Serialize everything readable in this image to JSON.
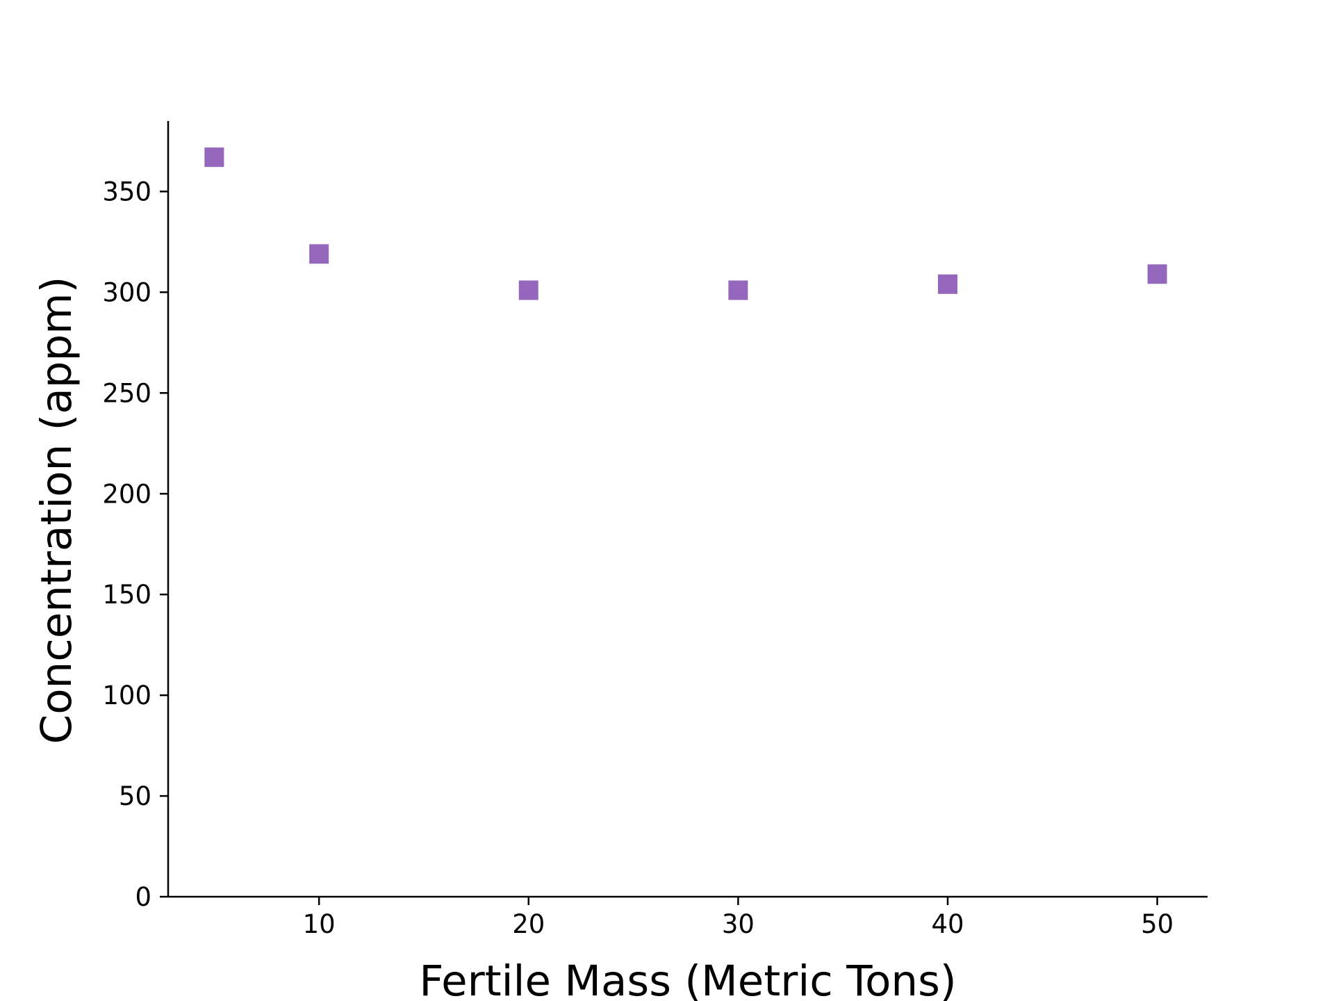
{
  "chart_data": {
    "type": "scatter",
    "title": "",
    "xlabel": "Fertile Mass (Metric Tons)",
    "ylabel": "Concentration (appm)",
    "xlim": [
      2.8,
      52.4
    ],
    "ylim": [
      0,
      385
    ],
    "xticks": [
      10,
      20,
      30,
      40,
      50
    ],
    "yticks": [
      0,
      50,
      100,
      150,
      200,
      250,
      300,
      350
    ],
    "grid": false,
    "legend": "none",
    "marker": "square",
    "color": "#9467bd",
    "series": [
      {
        "x": [
          5,
          10,
          20,
          30,
          40,
          50
        ],
        "y": [
          367,
          319,
          301,
          301,
          304,
          309
        ]
      }
    ]
  }
}
